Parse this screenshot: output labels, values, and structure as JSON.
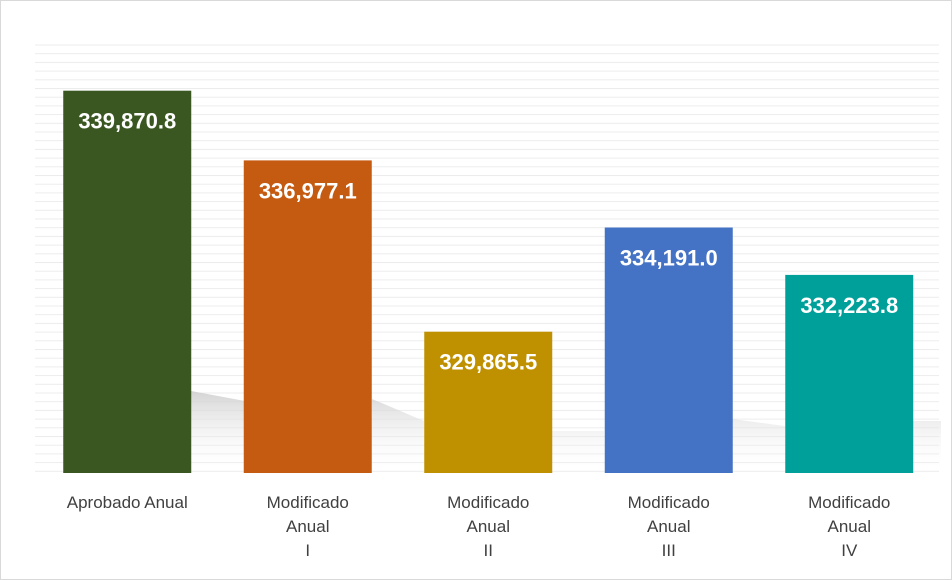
{
  "chart_data": {
    "type": "bar",
    "categories": [
      "Aprobado Anual",
      "Modificado\nAnual\nI",
      "Modificado\nAnual\nII",
      "Modificado\nAnual\nIII",
      "Modificado\nAnual\nIV"
    ],
    "values": [
      339870.8,
      336977.1,
      329865.5,
      334191.0,
      332223.8
    ],
    "value_labels": [
      "339,870.8",
      "336,977.1",
      "329,865.5",
      "334,191.0",
      "332,223.8"
    ],
    "colors": [
      "#3a5722",
      "#c55a11",
      "#bf9000",
      "#4472c4",
      "#00a09a"
    ],
    "ylim": [
      324000,
      342000
    ]
  }
}
